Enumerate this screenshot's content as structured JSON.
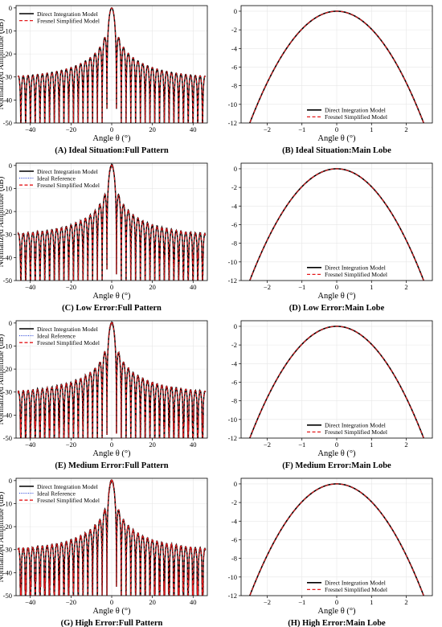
{
  "colors": {
    "direct": "#000000",
    "ideal": "#1f3bd6",
    "fresnel": "#e41a1c",
    "grid": "#e6e6e6",
    "axis": "#000000"
  },
  "chart_data": [
    {
      "id": "A",
      "type": "line",
      "kind": "full",
      "title": "(A) Ideal Situation:Full Pattern",
      "xlabel": "Angle θ (°)",
      "ylabel": "Normalized Amplitude (dB)",
      "xlim": [
        -47,
        47
      ],
      "ylim": [
        -50,
        1
      ],
      "xticks": [
        -40,
        -20,
        0,
        20,
        40
      ],
      "yticks": [
        0,
        -10,
        -20,
        -30,
        -40,
        -50
      ],
      "grid": true,
      "legend_position": "top-left",
      "series": [
        {
          "name": "Direct Integration Model",
          "style": "solid"
        },
        {
          "name": "Fresnel Simplified Model",
          "style": "dashed"
        }
      ],
      "error": 0,
      "envelope": {
        "peak_db": 0,
        "first_sidelobe_db": -13,
        "edge_sidelobe_db": -31,
        "lobe_spacing_deg": 2.35,
        "null_floor_db": -50
      }
    },
    {
      "id": "B",
      "type": "line",
      "kind": "main",
      "title": "(B) Ideal Situation:Main Lobe",
      "xlabel": "Angle θ (°)",
      "ylabel": "",
      "xlim": [
        -2.75,
        2.75
      ],
      "ylim": [
        -12,
        0.6
      ],
      "xticks": [
        -2,
        -1,
        0,
        1,
        2
      ],
      "yticks": [
        0,
        -2,
        -4,
        -6,
        -8,
        -10,
        -12
      ],
      "grid": true,
      "legend_position": "bottom-right",
      "series": [
        {
          "name": "Direct Integration Model",
          "style": "solid"
        },
        {
          "name": "Fresnel Simplified Model",
          "style": "dashed"
        }
      ],
      "main_lobe": {
        "peak_db": 0,
        "db_at_2_5deg": -12
      }
    },
    {
      "id": "C",
      "type": "line",
      "kind": "full",
      "title": "(C) Low Error:Full Pattern",
      "xlabel": "Angle θ (°)",
      "ylabel": "Normalized Amplitude (dB)",
      "xlim": [
        -47,
        47
      ],
      "ylim": [
        -50,
        1
      ],
      "xticks": [
        -40,
        -20,
        0,
        20,
        40
      ],
      "yticks": [
        0,
        -10,
        -20,
        -30,
        -40,
        -50
      ],
      "grid": true,
      "legend_position": "top-left",
      "series": [
        {
          "name": "Direct Integration Model",
          "style": "solid"
        },
        {
          "name": "Ideal Reference",
          "style": "dotted"
        },
        {
          "name": "Fresnel Simplified Model",
          "style": "dashed"
        }
      ],
      "error": 1,
      "envelope": {
        "peak_db": 0,
        "first_sidelobe_db": -13,
        "edge_sidelobe_db": -31,
        "lobe_spacing_deg": 2.35,
        "null_floor_db": -50
      }
    },
    {
      "id": "D",
      "type": "line",
      "kind": "main",
      "title": "(D) Low Error:Main Lobe",
      "xlabel": "Angle θ (°)",
      "ylabel": "",
      "xlim": [
        -2.75,
        2.75
      ],
      "ylim": [
        -12,
        0.6
      ],
      "xticks": [
        -2,
        -1,
        0,
        1,
        2
      ],
      "yticks": [
        0,
        -2,
        -4,
        -6,
        -8,
        -10,
        -12
      ],
      "grid": true,
      "legend_position": "bottom-right",
      "series": [
        {
          "name": "Direct Integration Model",
          "style": "solid"
        },
        {
          "name": "Fresnel Simplified Model",
          "style": "dashed"
        }
      ],
      "main_lobe": {
        "peak_db": 0,
        "db_at_2_5deg": -12
      }
    },
    {
      "id": "E",
      "type": "line",
      "kind": "full",
      "title": "(E) Medium Error:Full Pattern",
      "xlabel": "Angle θ (°)",
      "ylabel": "Normalized Amplitude (dB)",
      "xlim": [
        -47,
        47
      ],
      "ylim": [
        -50,
        1
      ],
      "xticks": [
        -40,
        -20,
        0,
        20,
        40
      ],
      "yticks": [
        0,
        -10,
        -20,
        -30,
        -40,
        -50
      ],
      "grid": true,
      "legend_position": "top-left",
      "series": [
        {
          "name": "Direct Integration Model",
          "style": "solid"
        },
        {
          "name": "Ideal Reference",
          "style": "dotted"
        },
        {
          "name": "Fresnel Simplified Model",
          "style": "dashed"
        }
      ],
      "error": 2,
      "envelope": {
        "peak_db": 0,
        "first_sidelobe_db": -13,
        "edge_sidelobe_db": -31,
        "lobe_spacing_deg": 2.35,
        "null_floor_db": -50
      }
    },
    {
      "id": "F",
      "type": "line",
      "kind": "main",
      "title": "(F) Medium Error:Main Lobe",
      "xlabel": "Angle θ (°)",
      "ylabel": "",
      "xlim": [
        -2.75,
        2.75
      ],
      "ylim": [
        -12,
        0.6
      ],
      "xticks": [
        -2,
        -1,
        0,
        1,
        2
      ],
      "yticks": [
        0,
        -2,
        -4,
        -6,
        -8,
        -10,
        -12
      ],
      "grid": true,
      "legend_position": "bottom-right",
      "series": [
        {
          "name": "Direct Integration Model",
          "style": "solid"
        },
        {
          "name": "Fresnel Simplified Model",
          "style": "dashed"
        }
      ],
      "main_lobe": {
        "peak_db": 0,
        "db_at_2_5deg": -12
      }
    },
    {
      "id": "G",
      "type": "line",
      "kind": "full",
      "title": "(G) High Error:Full Pattern",
      "xlabel": "Angle θ (°)",
      "ylabel": "Normalized Amplitude (dB)",
      "xlim": [
        -47,
        47
      ],
      "ylim": [
        -50,
        1
      ],
      "xticks": [
        -40,
        -20,
        0,
        20,
        40
      ],
      "yticks": [
        0,
        -10,
        -20,
        -30,
        -40,
        -50
      ],
      "grid": true,
      "legend_position": "top-left",
      "series": [
        {
          "name": "Direct Integration Model",
          "style": "solid"
        },
        {
          "name": "Ideal Reference",
          "style": "dotted"
        },
        {
          "name": "Fresnel Simplified Model",
          "style": "dashed"
        }
      ],
      "error": 3,
      "envelope": {
        "peak_db": 0,
        "first_sidelobe_db": -13,
        "edge_sidelobe_db": -31,
        "lobe_spacing_deg": 2.35,
        "null_floor_db": -50
      }
    },
    {
      "id": "H",
      "type": "line",
      "kind": "main",
      "title": "(H) High Error:Main Lobe",
      "xlabel": "Angle θ (°)",
      "ylabel": "",
      "xlim": [
        -2.75,
        2.75
      ],
      "ylim": [
        -12,
        0.6
      ],
      "xticks": [
        -2,
        -1,
        0,
        1,
        2
      ],
      "yticks": [
        0,
        -2,
        -4,
        -6,
        -8,
        -10,
        -12
      ],
      "grid": true,
      "legend_position": "bottom-right",
      "series": [
        {
          "name": "Direct Integration Model",
          "style": "solid"
        },
        {
          "name": "Fresnel Simplified Model",
          "style": "dashed"
        }
      ],
      "main_lobe": {
        "peak_db": 0,
        "db_at_2_5deg": -12
      }
    }
  ]
}
